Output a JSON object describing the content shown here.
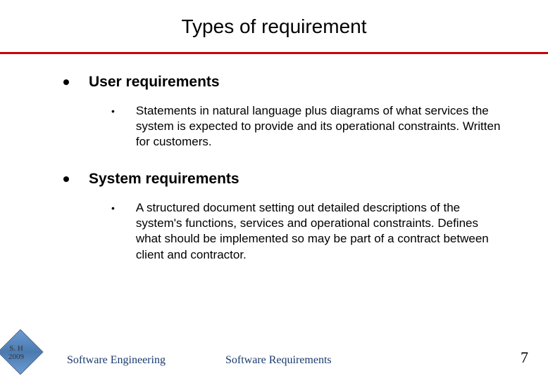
{
  "title": "Types of requirement",
  "rule_color": "#cc0000",
  "sections": [
    {
      "heading": "User requirements",
      "detail": "Statements in natural language plus diagrams of what services the system is expected to provide and its operational constraints. Written for customers."
    },
    {
      "heading": "System requirements",
      "detail": "A structured document setting out detailed descriptions of the system's functions, services and operational constraints. Defines what should be implemented so may be part of a contract between client and contractor."
    }
  ],
  "footer": {
    "course": "Software Engineering",
    "topic": "Software Requirements",
    "page": "7",
    "footer_color": "#1a3a6e"
  },
  "logo": {
    "line1": "S. H",
    "line2": "2009"
  }
}
